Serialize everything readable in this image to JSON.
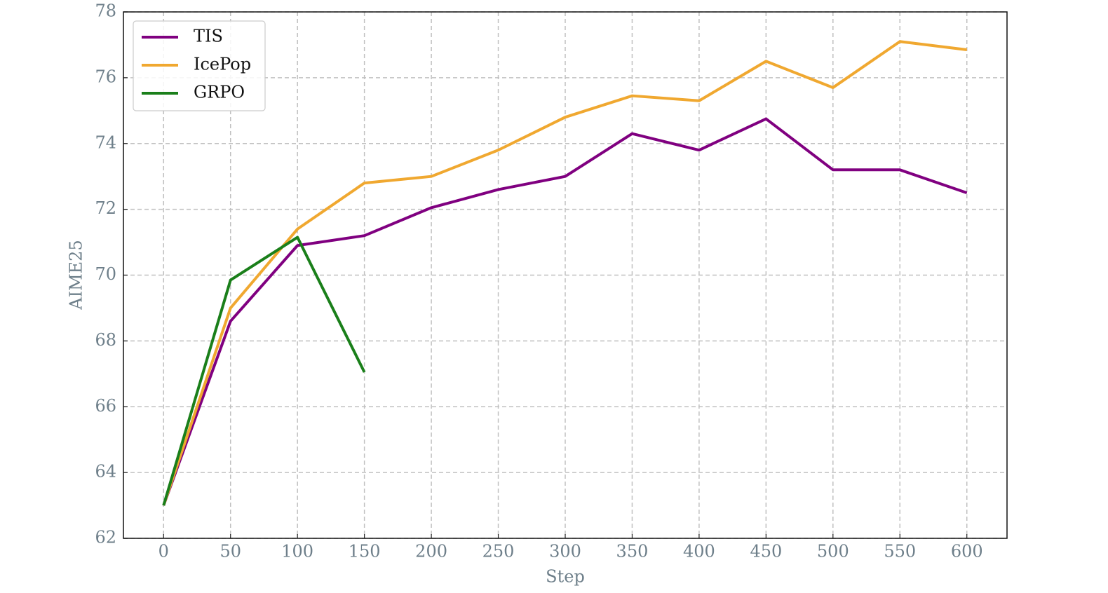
{
  "chart_data": {
    "type": "line",
    "x_label": "Step",
    "y_label": "AIME25",
    "x": [
      0,
      50,
      100,
      150,
      200,
      250,
      300,
      350,
      400,
      450,
      500,
      550,
      600
    ],
    "series": [
      {
        "name": "TIS",
        "color": "#800080",
        "values": [
          63.0,
          68.6,
          70.9,
          71.2,
          72.05,
          72.6,
          73.0,
          74.3,
          73.8,
          74.75,
          73.2,
          73.2,
          72.5
        ]
      },
      {
        "name": "IcePop",
        "color": "#f0a830",
        "values": [
          63.0,
          69.0,
          71.4,
          72.8,
          73.0,
          73.8,
          74.8,
          75.45,
          75.3,
          76.5,
          75.7,
          77.1,
          76.85
        ]
      },
      {
        "name": "GRPO",
        "color": "#1a7f1a",
        "values": [
          63.0,
          69.85,
          71.15,
          67.05,
          null,
          null,
          null,
          null,
          null,
          null,
          null,
          null,
          null
        ]
      }
    ],
    "xlim": [
      -30,
      630
    ],
    "xticks": [
      0,
      50,
      100,
      150,
      200,
      250,
      300,
      350,
      400,
      450,
      500,
      550,
      600
    ],
    "ylim": [
      62,
      78
    ],
    "yticks": [
      62,
      64,
      66,
      68,
      70,
      72,
      74,
      76,
      78
    ],
    "grid": true,
    "legend": "upper-left"
  }
}
